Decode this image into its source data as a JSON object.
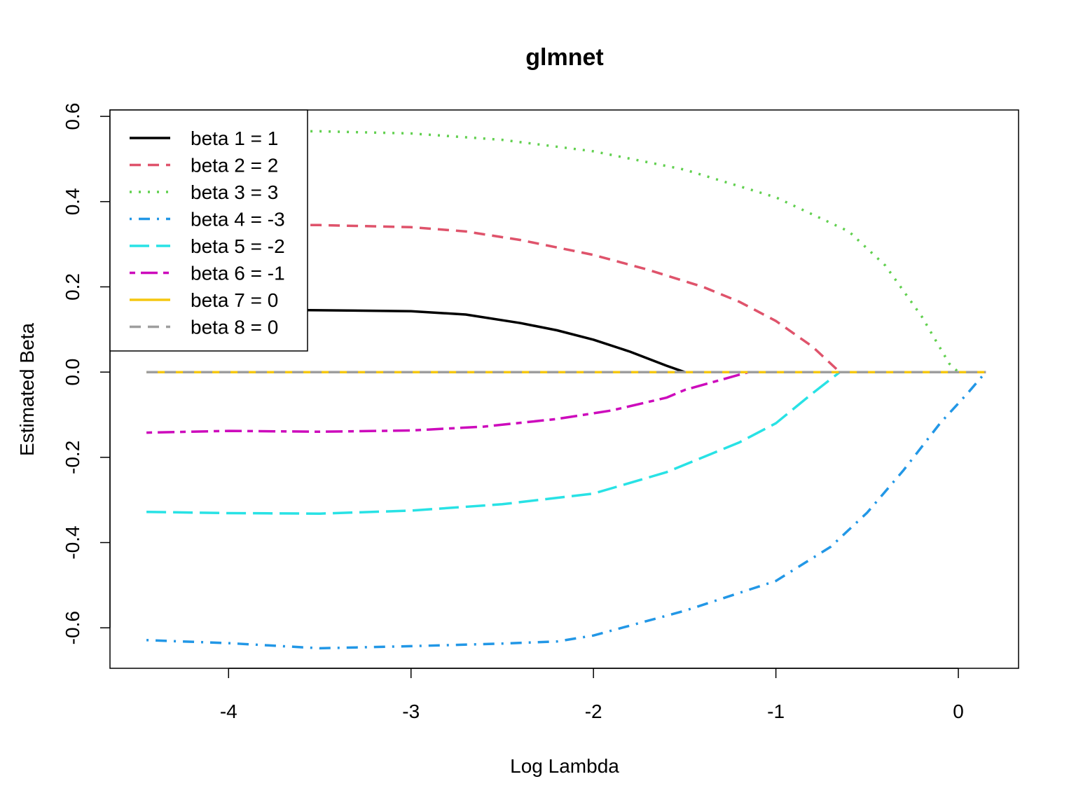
{
  "chart_data": {
    "type": "line",
    "title": "glmnet",
    "xlabel": "Log Lambda",
    "ylabel": "Estimated Beta",
    "xlim": [
      -4.65,
      0.33
    ],
    "ylim": [
      -0.695,
      0.615
    ],
    "x_ticks": [
      -4,
      -3,
      -2,
      -1,
      0
    ],
    "x_tick_labels": [
      "-4",
      "-3",
      "-2",
      "-1",
      "0"
    ],
    "y_ticks": [
      -0.6,
      -0.4,
      -0.2,
      0.0,
      0.2,
      0.4,
      0.6
    ],
    "y_tick_labels": [
      "-0.6",
      "-0.4",
      "-0.2",
      "0.0",
      "0.2",
      "0.4",
      "0.6"
    ],
    "grid": false,
    "legend_position": "top-left",
    "series": [
      {
        "name": "beta 1 = 1",
        "color": "#000000",
        "dash": "solid",
        "points": [
          [
            -4.45,
            0.148
          ],
          [
            -4.0,
            0.147
          ],
          [
            -3.5,
            0.145
          ],
          [
            -3.0,
            0.143
          ],
          [
            -2.7,
            0.135
          ],
          [
            -2.4,
            0.115
          ],
          [
            -2.2,
            0.098
          ],
          [
            -2.0,
            0.076
          ],
          [
            -1.8,
            0.048
          ],
          [
            -1.6,
            0.015
          ],
          [
            -1.5,
            0.0
          ],
          [
            -1.0,
            0.0
          ],
          [
            -0.5,
            0.0
          ],
          [
            0.0,
            0.0
          ],
          [
            0.15,
            0.0
          ]
        ]
      },
      {
        "name": "beta 2 = 2",
        "color": "#DF536B",
        "dash": "dashed",
        "points": [
          [
            -4.45,
            0.345
          ],
          [
            -4.0,
            0.346
          ],
          [
            -3.5,
            0.345
          ],
          [
            -3.0,
            0.34
          ],
          [
            -2.7,
            0.33
          ],
          [
            -2.4,
            0.31
          ],
          [
            -2.0,
            0.275
          ],
          [
            -1.7,
            0.24
          ],
          [
            -1.4,
            0.2
          ],
          [
            -1.2,
            0.165
          ],
          [
            -1.0,
            0.12
          ],
          [
            -0.8,
            0.06
          ],
          [
            -0.65,
            0.0
          ],
          [
            0.15,
            0.0
          ]
        ]
      },
      {
        "name": "beta 3 = 3",
        "color": "#61D04F",
        "dash": "dotted",
        "points": [
          [
            -4.45,
            0.565
          ],
          [
            -4.0,
            0.566
          ],
          [
            -3.5,
            0.565
          ],
          [
            -3.0,
            0.56
          ],
          [
            -2.5,
            0.545
          ],
          [
            -2.0,
            0.518
          ],
          [
            -1.5,
            0.475
          ],
          [
            -1.0,
            0.41
          ],
          [
            -0.6,
            0.33
          ],
          [
            -0.4,
            0.25
          ],
          [
            -0.2,
            0.13
          ],
          [
            -0.05,
            0.02
          ],
          [
            0.0,
            0.0
          ],
          [
            0.15,
            0.0
          ]
        ]
      },
      {
        "name": "beta 4 = -3",
        "color": "#2297E6",
        "dash": "dotdash",
        "points": [
          [
            -4.45,
            -0.629
          ],
          [
            -4.0,
            -0.636
          ],
          [
            -3.5,
            -0.648
          ],
          [
            -3.0,
            -0.643
          ],
          [
            -2.5,
            -0.637
          ],
          [
            -2.2,
            -0.632
          ],
          [
            -2.0,
            -0.618
          ],
          [
            -1.5,
            -0.56
          ],
          [
            -1.0,
            -0.49
          ],
          [
            -0.7,
            -0.41
          ],
          [
            -0.5,
            -0.33
          ],
          [
            -0.3,
            -0.23
          ],
          [
            -0.1,
            -0.12
          ],
          [
            0.05,
            -0.05
          ],
          [
            0.15,
            0.0
          ]
        ]
      },
      {
        "name": "beta 5 = -2",
        "color": "#28E2E5",
        "dash": "longdash",
        "points": [
          [
            -4.45,
            -0.328
          ],
          [
            -4.0,
            -0.331
          ],
          [
            -3.5,
            -0.332
          ],
          [
            -3.0,
            -0.325
          ],
          [
            -2.5,
            -0.31
          ],
          [
            -2.0,
            -0.285
          ],
          [
            -1.6,
            -0.235
          ],
          [
            -1.2,
            -0.165
          ],
          [
            -1.0,
            -0.12
          ],
          [
            -0.8,
            -0.05
          ],
          [
            -0.65,
            0.0
          ],
          [
            0.15,
            0.0
          ]
        ]
      },
      {
        "name": "beta 6 = -1",
        "color": "#CD0BBC",
        "dash": "twodash",
        "points": [
          [
            -4.45,
            -0.142
          ],
          [
            -4.0,
            -0.138
          ],
          [
            -3.5,
            -0.14
          ],
          [
            -3.0,
            -0.137
          ],
          [
            -2.6,
            -0.128
          ],
          [
            -2.2,
            -0.11
          ],
          [
            -1.9,
            -0.09
          ],
          [
            -1.6,
            -0.06
          ],
          [
            -1.5,
            -0.042
          ],
          [
            -1.3,
            -0.018
          ],
          [
            -1.15,
            0.0
          ],
          [
            0.15,
            0.0
          ]
        ]
      },
      {
        "name": "beta 7 = 0",
        "color": "#F5C710",
        "dash": "solid",
        "points": [
          [
            -4.45,
            0.0
          ],
          [
            0.15,
            0.0
          ]
        ]
      },
      {
        "name": "beta 8 = 0",
        "color": "#9E9E9E",
        "dash": "dashed",
        "points": [
          [
            -4.45,
            0.0
          ],
          [
            0.15,
            0.0
          ]
        ]
      }
    ]
  }
}
